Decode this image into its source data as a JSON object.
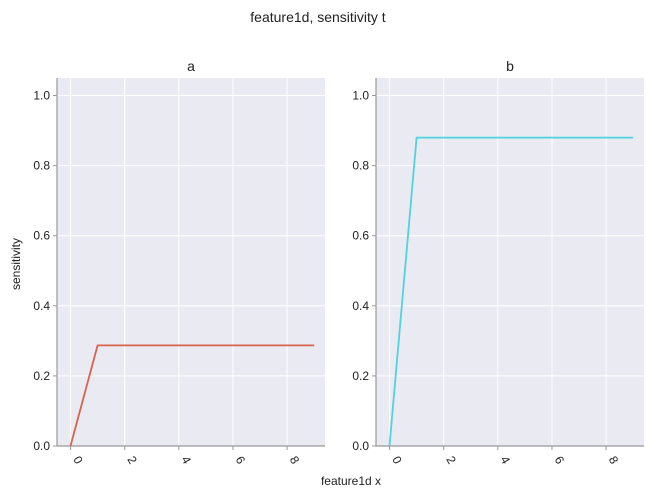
{
  "figure": {
    "title": "feature1d, sensitivity t",
    "xlabel": "feature1d x",
    "ylabel": "sensitivity"
  },
  "colors": {
    "background": "#EAEAF2",
    "grid": "#FFFFFF",
    "spine": "#999999"
  },
  "chart_data": [
    {
      "type": "line",
      "title": "a",
      "xlabel": "feature1d x",
      "ylabel": "sensitivity",
      "xlim": [
        -0.5,
        9.4
      ],
      "ylim": [
        0,
        1.05
      ],
      "xticks": [
        0,
        2,
        4,
        6,
        8
      ],
      "yticks": [
        0.0,
        0.2,
        0.4,
        0.6,
        0.8,
        1.0
      ],
      "grid": true,
      "series": [
        {
          "color": "#D9624F",
          "x": [
            0,
            1,
            2,
            3,
            4,
            5,
            6,
            7,
            8,
            9
          ],
          "y": [
            0.0,
            0.287,
            0.287,
            0.287,
            0.287,
            0.287,
            0.287,
            0.287,
            0.287,
            0.287
          ]
        }
      ]
    },
    {
      "type": "line",
      "title": "b",
      "xlabel": "feature1d x",
      "ylabel": "",
      "xlim": [
        -0.5,
        9.4
      ],
      "ylim": [
        0,
        1.05
      ],
      "xticks": [
        0,
        2,
        4,
        6,
        8
      ],
      "yticks": [
        0.0,
        0.2,
        0.4,
        0.6,
        0.8,
        1.0
      ],
      "grid": true,
      "series": [
        {
          "color": "#4FD3DE",
          "x": [
            0,
            1,
            2,
            3,
            4,
            5,
            6,
            7,
            8,
            9
          ],
          "y": [
            0.0,
            0.88,
            0.88,
            0.88,
            0.88,
            0.88,
            0.88,
            0.88,
            0.88,
            0.88
          ]
        }
      ]
    }
  ]
}
